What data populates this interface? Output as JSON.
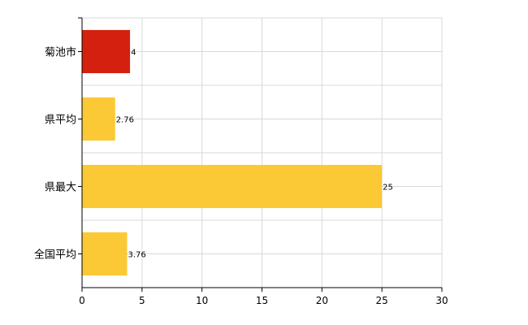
{
  "chart_data": {
    "type": "bar",
    "orientation": "horizontal",
    "title": "",
    "xlabel": "",
    "ylabel": "",
    "categories": [
      "菊池市",
      "県平均",
      "県最大",
      "全国平均"
    ],
    "values": [
      4,
      2.76,
      25,
      3.76
    ],
    "value_labels": [
      "4",
      "2.76",
      "25",
      "3.76"
    ],
    "colors": [
      "#d4200f",
      "#fbc936",
      "#fbc936",
      "#fbc936"
    ],
    "xlim": [
      0,
      30
    ],
    "xticks": [
      0,
      5,
      10,
      15,
      20,
      25,
      30
    ],
    "xtick_labels": [
      "0",
      "5",
      "10",
      "15",
      "20",
      "25",
      "30"
    ],
    "grid": true,
    "legend": "none"
  }
}
